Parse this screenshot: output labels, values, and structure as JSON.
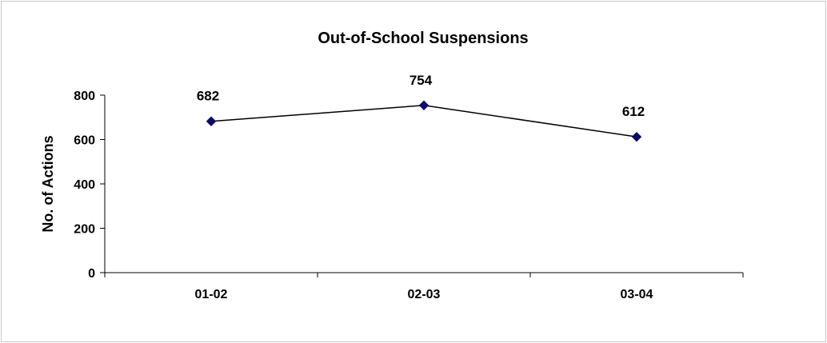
{
  "chart_data": {
    "type": "line",
    "title": "Out-of-School Suspensions",
    "xlabel": "",
    "ylabel": "No. of Actions",
    "categories": [
      "01-02",
      "02-03",
      "03-04"
    ],
    "series": [
      {
        "name": "",
        "values": [
          682,
          754,
          612
        ],
        "data_labels": [
          "682",
          "754",
          "612"
        ]
      }
    ],
    "ylim": [
      0,
      800
    ],
    "y_ticks": [
      0,
      200,
      400,
      600,
      800
    ],
    "y_tick_labels": [
      "0",
      "200",
      "400",
      "600",
      "800"
    ],
    "grid": false,
    "legend": "none",
    "colors": {
      "line": "#000000",
      "marker": "#0a0a6e",
      "axis": "#000000",
      "frame_border": "#c8c8c8",
      "background": "#ffffff"
    },
    "marker_shape": "diamond"
  }
}
